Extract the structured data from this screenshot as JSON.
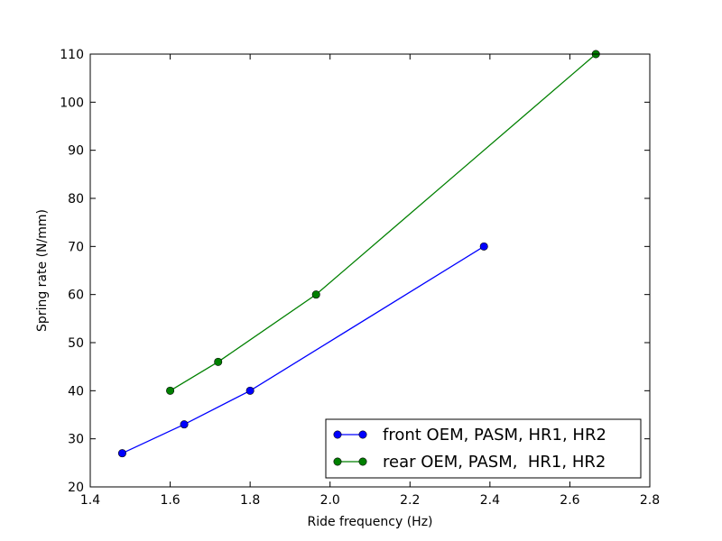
{
  "chart_data": {
    "type": "line",
    "title": "",
    "xlabel": "Ride frequency (Hz)",
    "ylabel": "Spring rate (N/mm)",
    "xlim": [
      1.4,
      2.8
    ],
    "ylim": [
      20,
      110
    ],
    "xticks": [
      "1.4",
      "1.6",
      "1.8",
      "2.0",
      "2.2",
      "2.4",
      "2.6",
      "2.8"
    ],
    "yticks": [
      "20",
      "30",
      "40",
      "50",
      "60",
      "70",
      "80",
      "90",
      "100",
      "110"
    ],
    "grid": false,
    "legend_position": "lower-right",
    "series": [
      {
        "name": "front OEM, PASM, HR1, HR2",
        "color": "#0000ff",
        "x": [
          1.48,
          1.635,
          1.8,
          2.385
        ],
        "y": [
          27,
          33,
          40,
          70
        ]
      },
      {
        "name": "rear OEM, PASM,  HR1, HR2",
        "color": "#008000",
        "x": [
          1.6,
          1.72,
          1.965,
          2.665
        ],
        "y": [
          40,
          46,
          60,
          110
        ]
      }
    ]
  }
}
